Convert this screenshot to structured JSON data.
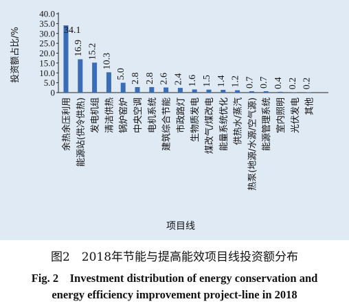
{
  "chart_data": {
    "type": "bar",
    "categories": [
      "余热余压利用",
      "能源站(供冷供热)",
      "发电机组",
      "清洁供热",
      "锅炉窑炉",
      "中央空调",
      "电机系统",
      "建筑综合节能",
      "市政路灯",
      "生物质发电",
      "煤改气/煤改电",
      "能量系统优化",
      "供热水/蒸汽",
      "热泵(地源/水源/空气源)",
      "能源管理系统",
      "室内照明",
      "光伏发电",
      "其他"
    ],
    "values": [
      34.1,
      16.9,
      15.2,
      10.3,
      5.0,
      2.8,
      2.8,
      2.6,
      2.4,
      1.6,
      1.5,
      1.4,
      1.2,
      0.7,
      0.7,
      0.4,
      0.2,
      0.2
    ],
    "value_labels": [
      "34.1",
      "16.9",
      "15.2",
      "10.3",
      "5.0",
      "2.8",
      "2.8",
      "2.6",
      "2.4",
      "1.6",
      "1.5",
      "1.4",
      "1.2",
      "0.7",
      "0.7",
      "0.4",
      "0.2",
      "0.2"
    ],
    "xlabel": "项目线",
    "ylabel": "投资额占比/%",
    "ylim": [
      0,
      40
    ],
    "yticks": [
      "0",
      "5.0",
      "10.0",
      "15.0",
      "20.0",
      "25.0",
      "30.0",
      "35.0",
      "40.0"
    ],
    "grid": false,
    "legend": "none",
    "bar_color": "#3a6db5"
  },
  "caption": {
    "cn": "图2　2018年节能与提高能效项目线投资额分布",
    "en_line1": "Fig. 2　Investment distribution of energy conservation and",
    "en_line2": "energy efficiency improvement project-line in 2018"
  },
  "colors": {
    "panel_background": "#dfeaf5",
    "bar": "#3a6db5"
  }
}
